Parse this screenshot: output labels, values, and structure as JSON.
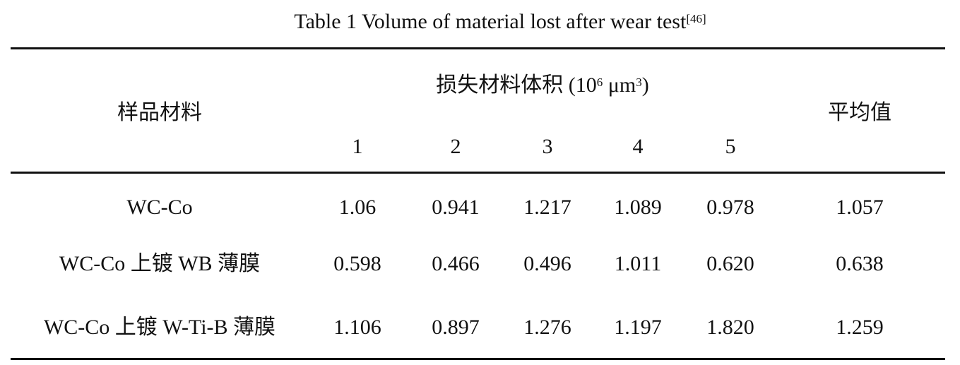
{
  "caption": {
    "text": "Table 1 Volume of material lost after wear test",
    "ref": "[46]"
  },
  "header": {
    "sample": "样品材料",
    "group": {
      "label": "损失材料体积 (10",
      "exp1": "6",
      "unit": " μm",
      "exp2": "3",
      "close": ")"
    },
    "trials": [
      "1",
      "2",
      "3",
      "4",
      "5"
    ],
    "average": "平均值"
  },
  "rows": [
    {
      "material": "WC-Co",
      "values": [
        "1.06",
        "0.941",
        "1.217",
        "1.089",
        "0.978"
      ],
      "average": "1.057"
    },
    {
      "material": "WC-Co  上镀 WB  薄膜",
      "values": [
        "0.598",
        "0.466",
        "0.496",
        "1.011",
        "0.620"
      ],
      "average": "0.638"
    },
    {
      "material": "WC-Co  上镀 W-Ti-B  薄膜",
      "values": [
        "1.106",
        "0.897",
        "1.276",
        "1.197",
        "1.820"
      ],
      "average": "1.259"
    }
  ]
}
